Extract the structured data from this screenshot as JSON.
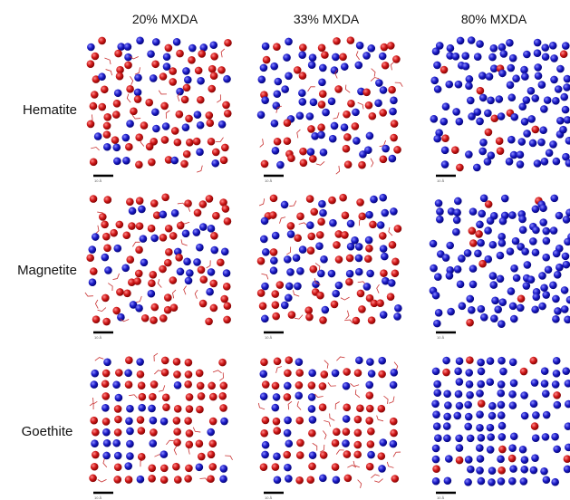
{
  "columns": [
    "20% MXDA",
    "33% MXDA",
    "80% MXDA"
  ],
  "rows": [
    "Hematite",
    "Magnetite",
    "Goethite"
  ],
  "scale_label": "10 Å"
}
